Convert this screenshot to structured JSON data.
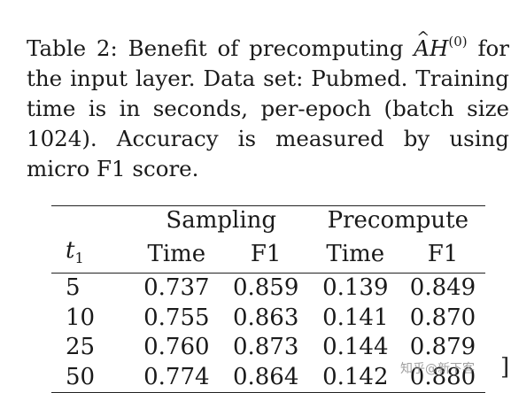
{
  "caption": {
    "line1_prefix": "Table 2: Benefit of precomputing ",
    "math_A": "A",
    "math_H": "H",
    "math_sup": "(0)",
    "line1_suffix": " for",
    "rest": "the input layer.  Data set: Pubmed.  Training time is in seconds, per-epoch (batch size 1024). Accuracy is measured by using micro F1 score."
  },
  "table": {
    "group_headers": [
      "Sampling",
      "Precompute"
    ],
    "col_header_t": "t",
    "col_header_t_sub": "1",
    "col_headers": [
      "Time",
      "F1",
      "Time",
      "F1"
    ],
    "rows": [
      [
        "5",
        "0.737",
        "0.859",
        "0.139",
        "0.849"
      ],
      [
        "10",
        "0.755",
        "0.863",
        "0.141",
        "0.870"
      ],
      [
        "25",
        "0.760",
        "0.873",
        "0.144",
        "0.879"
      ],
      [
        "50",
        "0.774",
        "0.864",
        "0.142",
        "0.880"
      ]
    ]
  },
  "watermark": "知乎@新下客",
  "trailing_bracket": "]"
}
